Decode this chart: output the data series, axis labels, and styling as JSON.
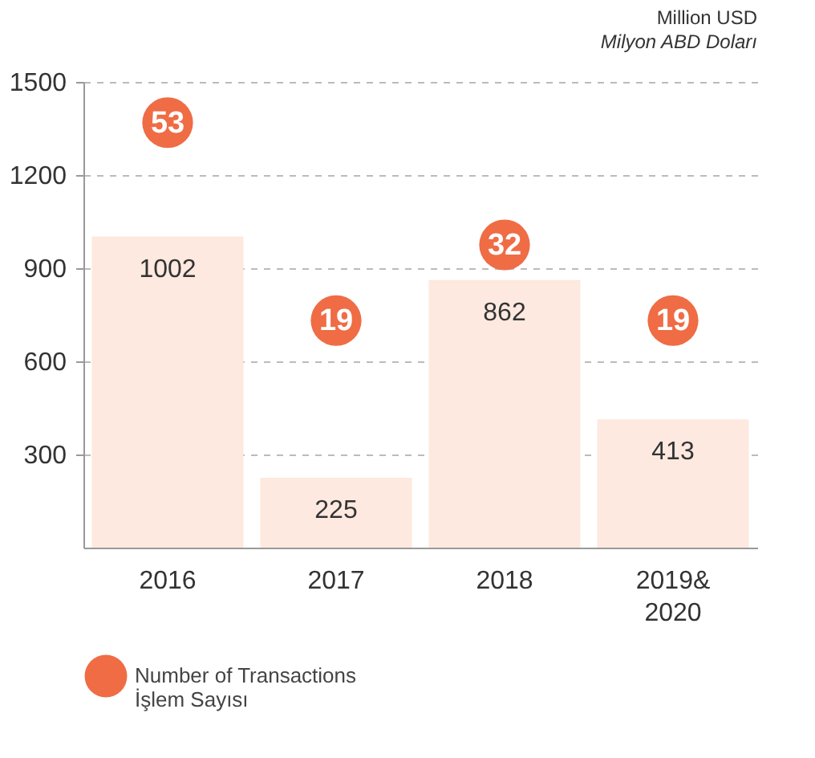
{
  "chart_data": {
    "type": "bar",
    "categories": [
      "2016",
      "2017",
      "2018",
      "2019& 2020"
    ],
    "series": [
      {
        "color": "#fde9df",
        "values": [
          1002,
          225,
          862,
          413
        ]
      },
      {
        "type": "scatter",
        "axis": "y2",
        "name": "Number of Transactions\nİşlem Sayısı",
        "color": "#ef6c45",
        "values": [
          53,
          19,
          32,
          19
        ]
      }
    ],
    "data_labels": true,
    "ylim": [
      0,
      1500
    ],
    "yticks": [
      300,
      600,
      900,
      1200,
      1500
    ],
    "y2lim": [
      -20,
      60
    ],
    "tick_labels": "xy",
    "grid": "y",
    "legend": "bottom left",
    "marker": "circle",
    "annotations": [
      "Million USD",
      "Milyon ABD Doları"
    ]
  }
}
